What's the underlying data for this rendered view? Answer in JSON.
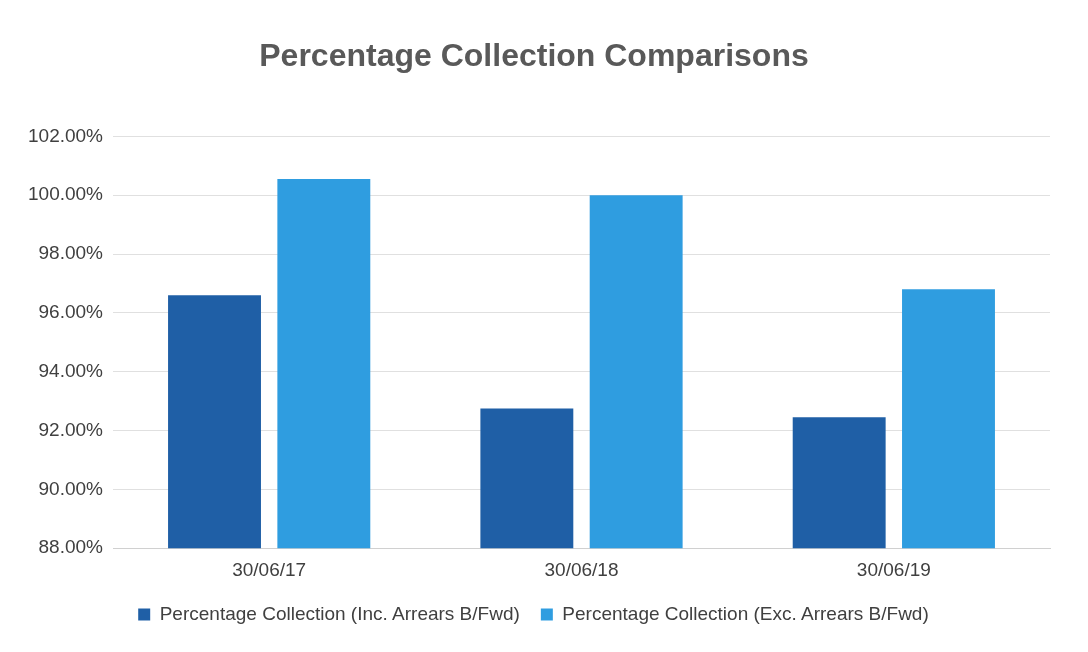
{
  "chart_data": {
    "type": "bar",
    "title": "Percentage Collection Comparisons",
    "categories": [
      "30/06/17",
      "30/06/18",
      "30/06/19"
    ],
    "series": [
      {
        "name": "Percentage Collection (Inc. Arrears B/Fwd)",
        "color": "#1f5fa6",
        "values": [
          96.6,
          92.75,
          92.45
        ]
      },
      {
        "name": "Percentage Collection (Exc. Arrears B/Fwd)",
        "color": "#2f9de0",
        "values": [
          100.55,
          100.0,
          96.8
        ]
      }
    ],
    "ylim": [
      88,
      102
    ],
    "yticks": [
      {
        "value": 88,
        "label": "88.00%"
      },
      {
        "value": 90,
        "label": "90.00%"
      },
      {
        "value": 92,
        "label": "92.00%"
      },
      {
        "value": 94,
        "label": "94.00%"
      },
      {
        "value": 96,
        "label": "96.00%"
      },
      {
        "value": 98,
        "label": "98.00%"
      },
      {
        "value": 100,
        "label": "100.00%"
      },
      {
        "value": 102,
        "label": "102.00%"
      }
    ],
    "grid": "y",
    "legend": "bottom"
  }
}
